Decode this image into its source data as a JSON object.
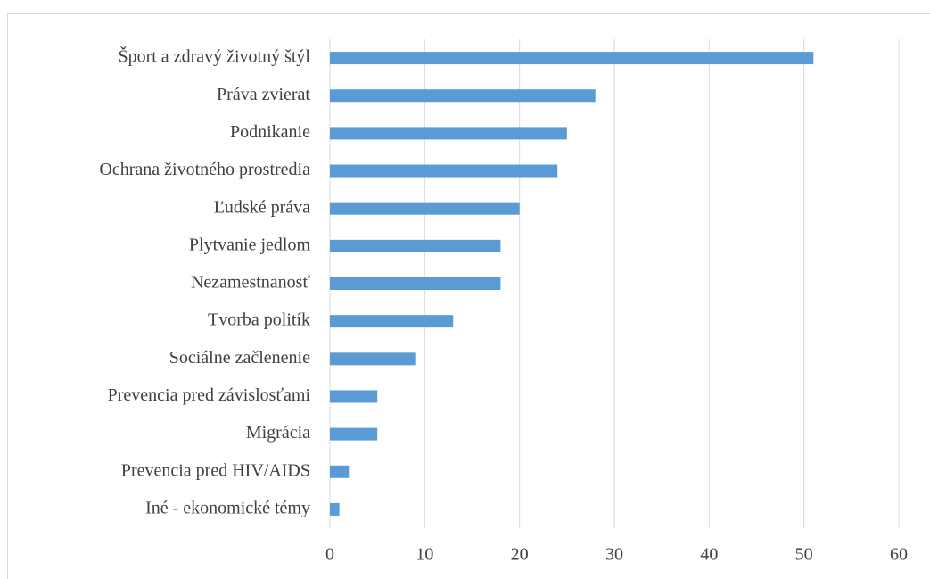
{
  "chart_data": {
    "type": "barh",
    "categories": [
      "Šport a zdravý životný štýl",
      "Práva zvierat",
      "Podnikanie",
      "Ochrana životného prostredia",
      "Ľudské práva",
      "Plytvanie jedlom",
      "Nezamestnanosť",
      "Tvorba politík",
      "Sociálne začlenenie",
      "Prevencia pred závislosťami",
      "Migrácia",
      "Prevencia pred HIV/AIDS",
      "Iné - ekonomické témy"
    ],
    "values": [
      51,
      28,
      25,
      24,
      20,
      18,
      18,
      13,
      9,
      5,
      5,
      2,
      1
    ],
    "color": "#5b9bd5",
    "xlim": [
      0,
      60
    ],
    "xticks": [
      0,
      10,
      20,
      30,
      40,
      50,
      60
    ],
    "grid": true
  }
}
